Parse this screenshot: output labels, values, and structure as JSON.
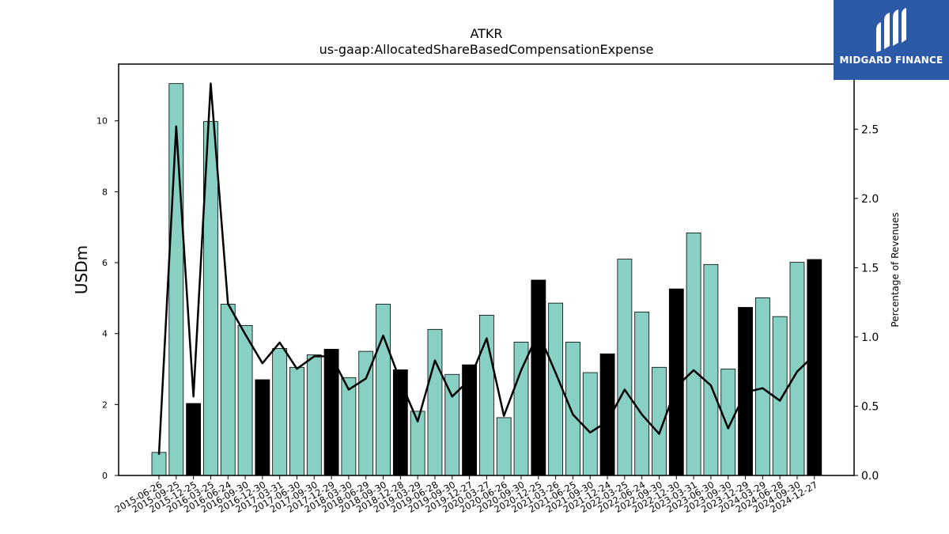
{
  "chart_data": {
    "type": "bar",
    "title": "ATKR",
    "subtitle": "us-gaap:AllocatedShareBasedCompensationExpense",
    "ylabel": "USDm",
    "y2label": "Percentage of Revenues",
    "ylim": [
      0,
      11.6
    ],
    "y2lim": [
      0,
      2.97
    ],
    "yticks": [
      0,
      2,
      4,
      6,
      8,
      10
    ],
    "y2ticks": [
      0.0,
      0.5,
      1.0,
      1.5,
      2.0,
      2.5
    ],
    "categories": [
      "2015-06-26",
      "2015-09-25",
      "2015-12-25",
      "2016-03-25",
      "2016-06-24",
      "2016-09-30",
      "2016-12-30",
      "2017-03-31",
      "2017-06-30",
      "2017-09-30",
      "2017-12-29",
      "2018-03-30",
      "2018-06-29",
      "2018-09-30",
      "2018-12-28",
      "2019-03-29",
      "2019-06-28",
      "2019-09-30",
      "2019-12-27",
      "2020-03-27",
      "2020-06-26",
      "2020-09-30",
      "2020-12-25",
      "2021-03-26",
      "2021-06-25",
      "2021-09-30",
      "2021-12-24",
      "2022-03-25",
      "2022-06-24",
      "2022-09-30",
      "2022-12-30",
      "2023-03-31",
      "2023-06-30",
      "2023-09-30",
      "2023-12-29",
      "2024-03-29",
      "2024-06-28",
      "2024-09-30",
      "2024-12-27"
    ],
    "series": [
      {
        "type": "bar",
        "values": [
          0.65,
          11.05,
          2.03,
          9.98,
          4.83,
          4.23,
          2.7,
          3.58,
          3.05,
          3.4,
          3.56,
          2.76,
          3.5,
          4.83,
          2.98,
          1.81,
          4.12,
          2.85,
          3.12,
          4.52,
          1.63,
          3.76,
          5.51,
          4.86,
          3.76,
          2.9,
          3.43,
          6.1,
          4.61,
          3.05,
          5.26,
          6.84,
          5.95,
          3.0,
          4.74,
          5.01,
          4.48,
          6.01,
          6.09
        ]
      },
      {
        "type": "line",
        "axis": "right",
        "values": [
          0.15,
          2.52,
          0.57,
          2.83,
          1.24,
          1.02,
          0.81,
          0.96,
          0.77,
          0.86,
          0.86,
          0.62,
          0.7,
          1.01,
          0.68,
          0.39,
          0.83,
          0.57,
          0.69,
          0.99,
          0.43,
          0.76,
          1.03,
          0.74,
          0.44,
          0.31,
          0.39,
          0.62,
          0.44,
          0.3,
          0.64,
          0.76,
          0.65,
          0.34,
          0.6,
          0.63,
          0.54,
          0.75,
          0.87
        ]
      }
    ],
    "highlight_indices": [
      2,
      6,
      10,
      14,
      18,
      22,
      26,
      30,
      34,
      38
    ],
    "colors": {
      "bar": "#88d0c4",
      "highlight": "#000000",
      "line": "#000000"
    },
    "grid": false
  },
  "logo": {
    "text": "MIDGARD FINANCE",
    "bg": "#2d5aa8"
  }
}
